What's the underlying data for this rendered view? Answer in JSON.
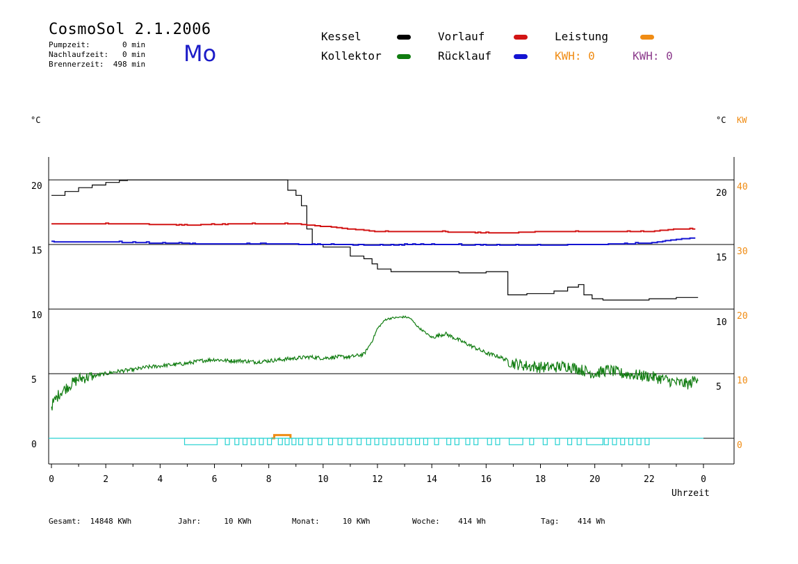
{
  "header": {
    "title": "CosmoSol 2.1.2006",
    "pump_line": "Pumpzeit:       0 min",
    "nachlauf_line": "Nachlaufzeit:   0 min",
    "brenner_line": "Brennerzeit:  498 min",
    "weekday": "Mo"
  },
  "legend": {
    "kessel": "Kessel",
    "kollektor": "Kollektor",
    "vorlauf": "Vorlauf",
    "ruecklauf": "Rücklauf",
    "leistung": "Leistung",
    "kwh_orange": "KWH: 0",
    "kwh_purple": "KWH: 0"
  },
  "colors": {
    "kessel": "#000000",
    "kollektor": "#107c10",
    "vorlauf": "#d21414",
    "ruecklauf": "#1414d2",
    "leistung": "#f08c14",
    "kwh_purple": "#8c3c8c",
    "pump": "#28d2d2"
  },
  "axis_units": {
    "left": "°C",
    "right_c": "°C",
    "right_kw": "KW",
    "x_label": "Uhrzeit"
  },
  "footer": {
    "gesamt": "Gesamt:  14848 KWh",
    "jahr": "Jahr:     10 KWh",
    "monat": "Monat:     10 KWh",
    "woche": "Woche:    414 Wh",
    "tag": "Tag:    414 Wh"
  },
  "chart_data": {
    "type": "line",
    "xlabel": "Uhrzeit",
    "x_ticks": [
      "0",
      "2",
      "4",
      "6",
      "8",
      "10",
      "12",
      "14",
      "16",
      "18",
      "20",
      "22",
      "0"
    ],
    "xlim": [
      0,
      24
    ],
    "y_left_ticks": [
      "0",
      "5",
      "10",
      "15",
      "20"
    ],
    "y_right_c_ticks": [
      "5",
      "10",
      "15",
      "20"
    ],
    "y_right_kw_ticks": [
      "0",
      "10",
      "20",
      "30",
      "40"
    ],
    "ylim_left": [
      -1.9,
      22.2
    ],
    "ylim_right_kw": [
      -3.8,
      44.4
    ],
    "grid": "horizontal",
    "series": [
      {
        "name": "Kessel",
        "color_key": "kessel",
        "step": true,
        "x": [
          0,
          0.5,
          1,
          1.5,
          2,
          2.5,
          2.8,
          3,
          5.5,
          6,
          8.5,
          8.7,
          9,
          9.2,
          9.4,
          9.6,
          10,
          10.5,
          11,
          11.5,
          11.8,
          12,
          12.5,
          13,
          14,
          15,
          16,
          16.3,
          16.6,
          16.8,
          17,
          17.5,
          18,
          18.5,
          19,
          19.4,
          19.6,
          19.9,
          20.3,
          21,
          22,
          23,
          23.8
        ],
        "y": [
          18.8,
          19.1,
          19.4,
          19.6,
          19.8,
          19.95,
          20,
          20,
          20,
          20,
          20,
          19.2,
          18.8,
          18,
          16.2,
          15,
          14.8,
          14.8,
          14.1,
          13.9,
          13.5,
          13.1,
          12.9,
          12.9,
          12.9,
          12.8,
          12.9,
          12.9,
          12.9,
          11.1,
          11.1,
          11.2,
          11.2,
          11.4,
          11.7,
          11.9,
          11.1,
          10.8,
          10.7,
          10.7,
          10.8,
          10.9,
          10.9
        ]
      },
      {
        "name": "Vorlauf",
        "color_key": "vorlauf",
        "step": true,
        "x": [
          0,
          3,
          5,
          7,
          9,
          10,
          11,
          12,
          14,
          16,
          17,
          18,
          20,
          22,
          23,
          23.8
        ],
        "y": [
          16.6,
          16.6,
          16.5,
          16.6,
          16.6,
          16.4,
          16.2,
          16.0,
          16.0,
          15.9,
          15.9,
          16.0,
          16.0,
          16.0,
          16.2,
          16.2
        ],
        "noisy": true
      },
      {
        "name": "Rücklauf",
        "color_key": "ruecklauf",
        "step": true,
        "x": [
          0,
          2,
          4,
          6,
          8,
          10,
          12,
          14,
          16,
          18,
          20,
          22,
          23,
          23.8
        ],
        "y": [
          15.2,
          15.2,
          15.1,
          15.05,
          15.05,
          15.0,
          14.95,
          15.0,
          14.95,
          14.95,
          15.0,
          15.1,
          15.4,
          15.5
        ],
        "noisy": true
      },
      {
        "name": "Kollektor",
        "color_key": "kollektor",
        "step": false,
        "x": [
          0,
          0.3,
          0.6,
          1,
          1.5,
          2,
          2.5,
          3,
          3.5,
          4,
          4.5,
          5,
          5.5,
          6,
          6.5,
          7,
          7.5,
          8,
          8.5,
          9,
          9.5,
          10,
          10.5,
          11,
          11.5,
          11.8,
          12,
          12.3,
          12.5,
          13,
          13.2,
          13.5,
          14,
          14.5,
          15,
          15.5,
          16,
          16.5,
          17,
          17.5,
          18,
          18.5,
          19,
          19.5,
          20,
          20.5,
          21,
          22,
          22.5,
          23,
          23.5,
          23.8
        ],
        "y": [
          2.5,
          3.5,
          4,
          4.6,
          4.8,
          5,
          5.2,
          5.3,
          5.5,
          5.6,
          5.7,
          5.8,
          6,
          6.1,
          6,
          6,
          5.9,
          6,
          6.1,
          6.2,
          6.3,
          6.2,
          6.3,
          6.3,
          6.5,
          7.5,
          8.5,
          9.2,
          9.3,
          9.4,
          9.3,
          8.6,
          7.8,
          8.1,
          7.6,
          7.1,
          6.6,
          6.3,
          5.8,
          5.6,
          5.5,
          5.5,
          5.6,
          5.3,
          5,
          5.3,
          5,
          4.8,
          4.6,
          4.3,
          4.2,
          4.8
        ],
        "noisy": true
      },
      {
        "name": "Leistung",
        "color_key": "leistung",
        "step": true,
        "x": [
          8.1,
          8.2,
          8.7,
          8.8
        ],
        "y": [
          0,
          0.25,
          0.25,
          0
        ]
      }
    ],
    "pump_pulses_hours": [
      [
        4.9,
        6.1
      ],
      [
        6.4,
        6.55
      ],
      [
        6.75,
        6.9
      ],
      [
        7.05,
        7.2
      ],
      [
        7.35,
        7.5
      ],
      [
        7.65,
        7.8
      ],
      [
        7.95,
        8.1
      ],
      [
        8.35,
        8.5
      ],
      [
        8.6,
        8.75
      ],
      [
        8.85,
        9.0
      ],
      [
        9.1,
        9.25
      ],
      [
        9.45,
        9.6
      ],
      [
        9.8,
        9.95
      ],
      [
        10.2,
        10.35
      ],
      [
        10.55,
        10.7
      ],
      [
        10.9,
        11.05
      ],
      [
        11.25,
        11.4
      ],
      [
        11.6,
        11.75
      ],
      [
        11.9,
        12.05
      ],
      [
        12.2,
        12.35
      ],
      [
        12.5,
        12.65
      ],
      [
        12.8,
        12.95
      ],
      [
        13.1,
        13.25
      ],
      [
        13.4,
        13.55
      ],
      [
        13.7,
        13.85
      ],
      [
        14.1,
        14.25
      ],
      [
        14.55,
        14.7
      ],
      [
        14.85,
        15.0
      ],
      [
        15.25,
        15.4
      ],
      [
        15.55,
        15.7
      ],
      [
        16.05,
        16.2
      ],
      [
        16.35,
        16.5
      ],
      [
        16.85,
        17.35
      ],
      [
        17.6,
        17.75
      ],
      [
        18.1,
        18.25
      ],
      [
        18.55,
        18.7
      ],
      [
        19.0,
        19.15
      ],
      [
        19.35,
        19.5
      ],
      [
        19.7,
        20.3
      ],
      [
        20.35,
        20.5
      ],
      [
        20.65,
        20.8
      ],
      [
        20.95,
        21.1
      ],
      [
        21.25,
        21.4
      ],
      [
        21.55,
        21.7
      ],
      [
        21.85,
        22.0
      ]
    ],
    "pump_level": -0.5
  }
}
